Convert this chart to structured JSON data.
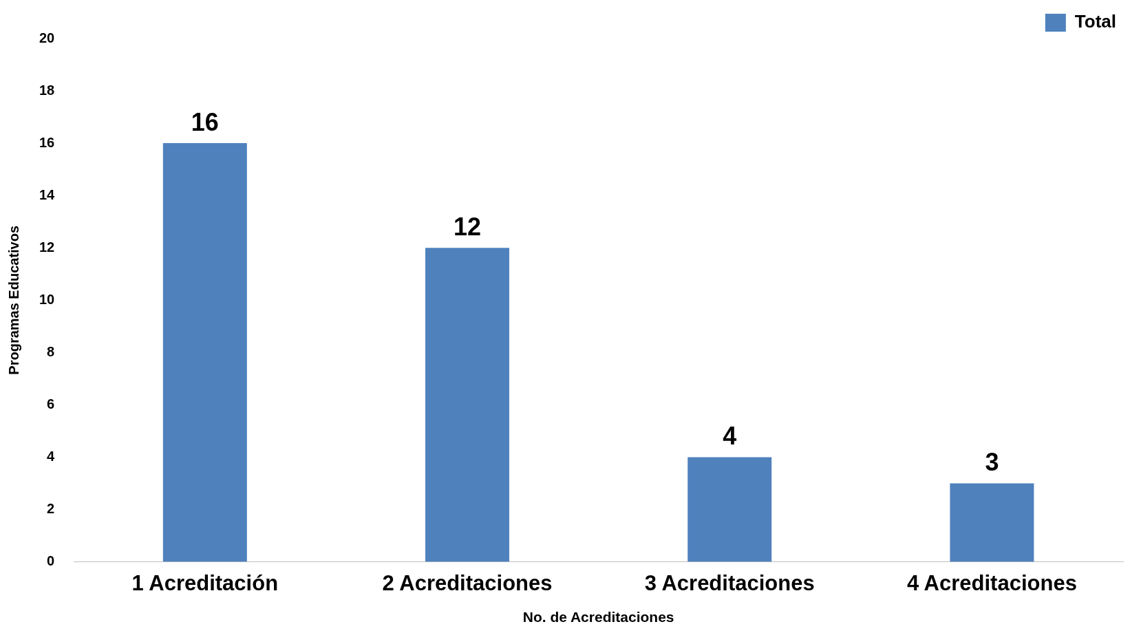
{
  "chart_data": {
    "type": "bar",
    "categories": [
      "1 Acreditación",
      "2 Acreditaciones",
      "3 Acreditaciones",
      "4 Acreditaciones"
    ],
    "series": [
      {
        "name": "Total",
        "color": "#4f81bd",
        "values": [
          16,
          12,
          4,
          3
        ]
      }
    ],
    "xlabel": "No. de Acreditaciones",
    "ylabel": "Programas Educativos",
    "ylim": [
      0,
      20
    ],
    "yticks": [
      0,
      2,
      4,
      6,
      8,
      10,
      12,
      14,
      16,
      18,
      20
    ],
    "grid": false,
    "legend": "top right",
    "data_labels": true
  }
}
